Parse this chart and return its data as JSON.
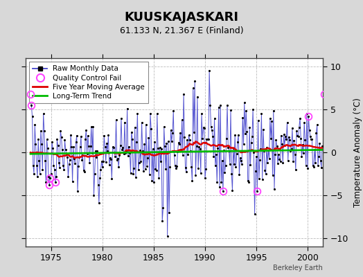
{
  "title": "KUUSKAJASKARI",
  "subtitle": "61.133 N, 21.367 E (Finland)",
  "ylabel": "Temperature Anomaly (°C)",
  "credit": "Berkeley Earth",
  "xlim": [
    1972.5,
    2001.5
  ],
  "ylim": [
    -11,
    11
  ],
  "yticks": [
    -10,
    -5,
    0,
    5,
    10
  ],
  "xticks": [
    1975,
    1980,
    1985,
    1990,
    1995,
    2000
  ],
  "bg_color": "#d8d8d8",
  "plot_bg_color": "#ffffff",
  "line_color": "#4444cc",
  "marker_color": "#000000",
  "moving_avg_color": "#dd0000",
  "trend_color": "#00bb00",
  "qc_fail_color": "#ff44ff",
  "seed": 42,
  "n_months": 348,
  "start_year": 1973.0
}
